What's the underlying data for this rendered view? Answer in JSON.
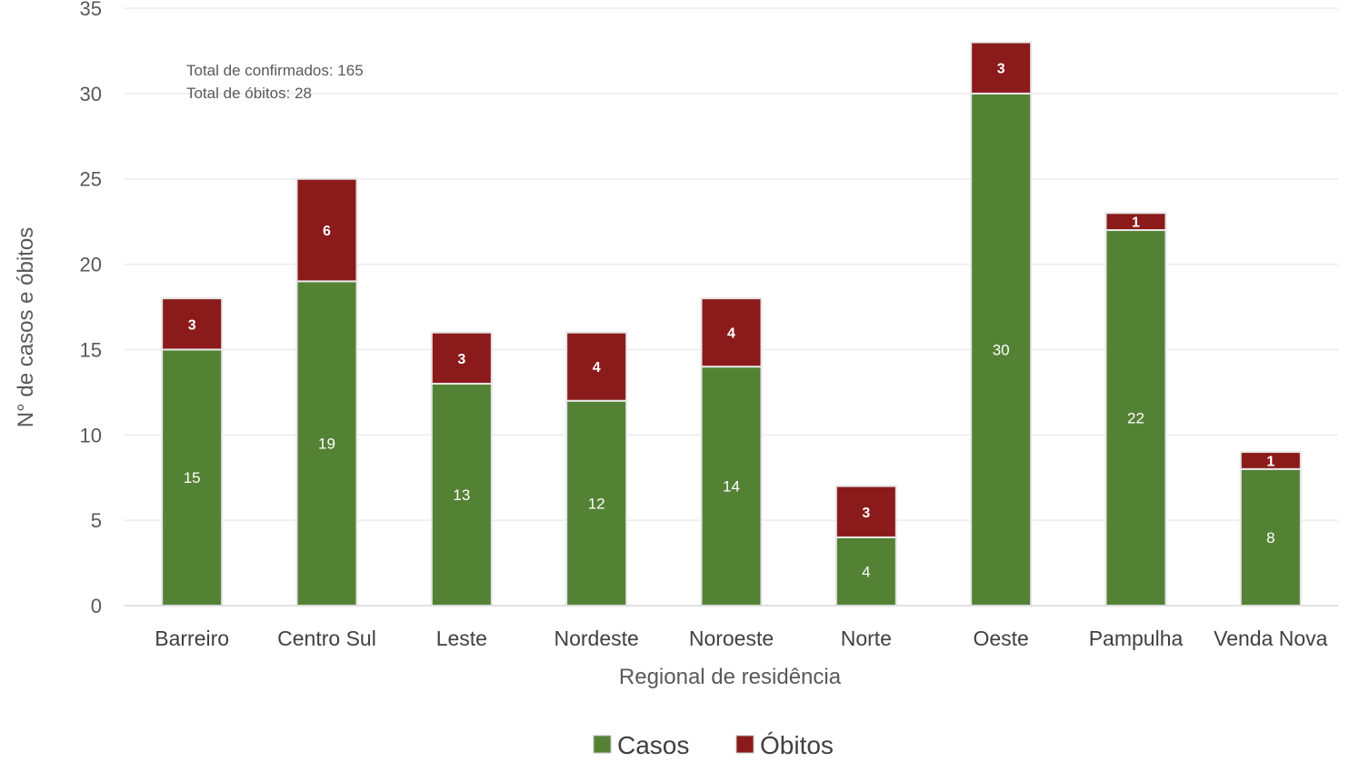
{
  "chart_data": {
    "type": "bar",
    "stacked": true,
    "categories": [
      "Barreiro",
      "Centro Sul",
      "Leste",
      "Nordeste",
      "Noroeste",
      "Norte",
      "Oeste",
      "Pampulha",
      "Venda Nova"
    ],
    "series": [
      {
        "name": "Casos",
        "values": [
          15,
          19,
          13,
          12,
          14,
          4,
          30,
          22,
          8
        ],
        "color": "#548235"
      },
      {
        "name": "Óbitos",
        "values": [
          3,
          6,
          3,
          4,
          4,
          3,
          3,
          1,
          1
        ],
        "color": "#8B1A1A"
      }
    ],
    "xlabel": "Regional de residência",
    "ylabel": "N° de casos e óbitos",
    "ylim": [
      0,
      35
    ],
    "yticks": [
      0,
      5,
      10,
      15,
      20,
      25,
      30,
      35
    ],
    "grid": true,
    "legend": "bottom",
    "annotations": [
      "Total de confirmados: 165",
      "Total de óbitos: 28"
    ]
  }
}
